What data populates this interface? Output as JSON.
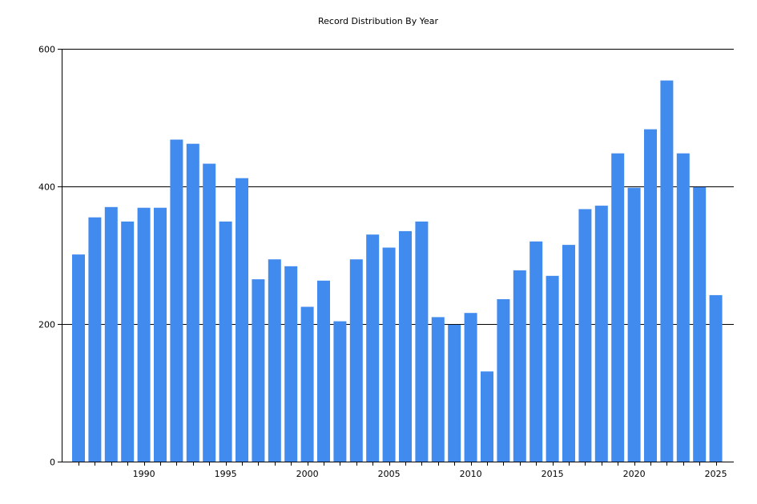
{
  "chart_data": {
    "type": "bar",
    "title": "Record Distribution By Year",
    "xlabel": "",
    "ylabel": "",
    "categories": [
      1986,
      1987,
      1988,
      1989,
      1990,
      1991,
      1992,
      1993,
      1994,
      1995,
      1996,
      1997,
      1998,
      1999,
      2000,
      2001,
      2002,
      2003,
      2004,
      2005,
      2006,
      2007,
      2008,
      2009,
      2010,
      2011,
      2012,
      2013,
      2014,
      2015,
      2016,
      2017,
      2018,
      2019,
      2020,
      2021,
      2022,
      2023,
      2024,
      2025
    ],
    "values": [
      301,
      355,
      370,
      349,
      369,
      369,
      468,
      462,
      433,
      349,
      412,
      265,
      294,
      284,
      225,
      263,
      204,
      294,
      330,
      311,
      335,
      349,
      210,
      199,
      216,
      131,
      236,
      278,
      320,
      270,
      315,
      367,
      372,
      448,
      398,
      483,
      554,
      448,
      399,
      242
    ],
    "ylim": [
      0,
      600
    ],
    "yticks": [
      0,
      200,
      400,
      600
    ],
    "xticks": [
      1990,
      1995,
      2000,
      2005,
      2010,
      2015,
      2020,
      2025
    ],
    "grid": true,
    "bar_color": "#428BEE"
  }
}
